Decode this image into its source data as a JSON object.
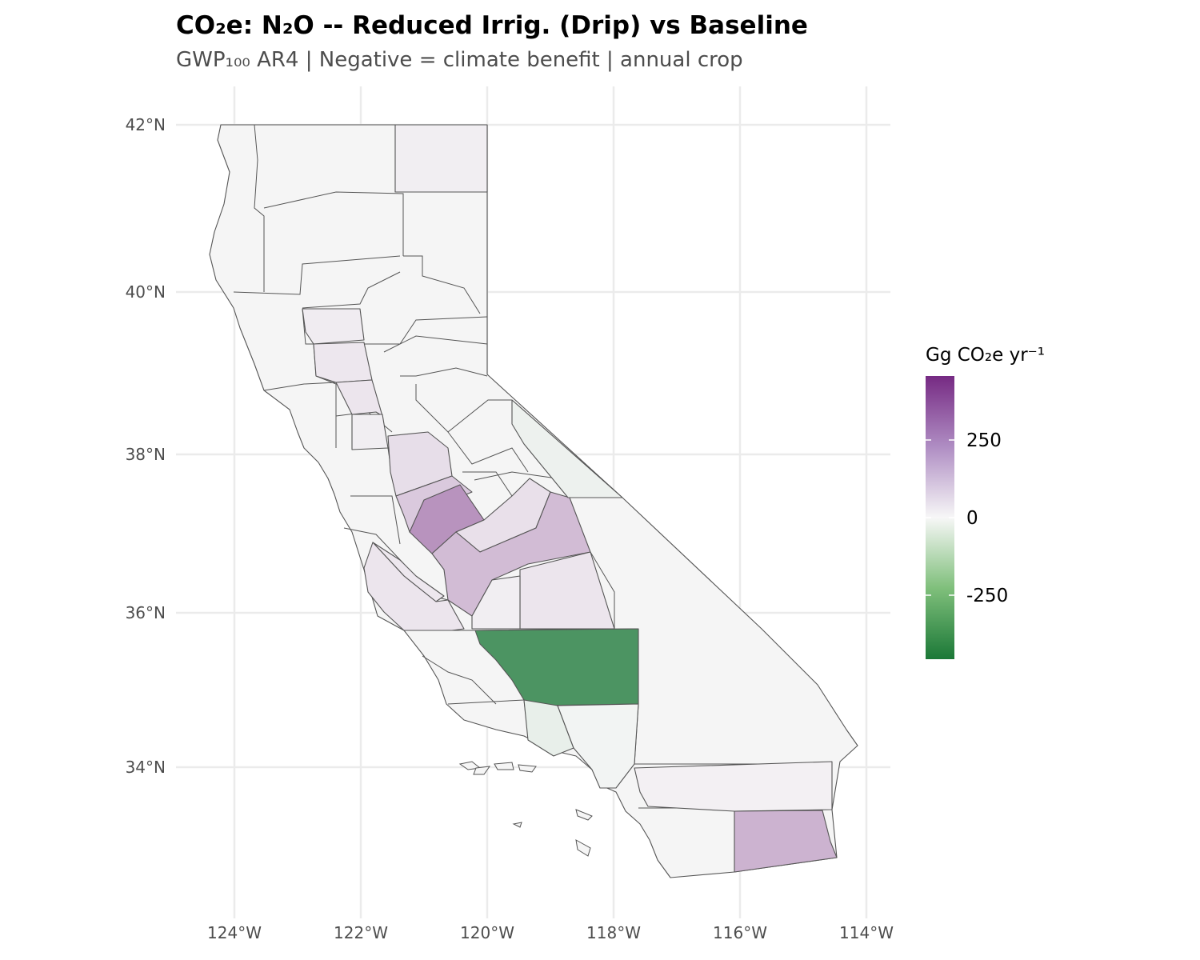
{
  "title": "CO₂e: N₂O -- Reduced Irrig. (Drip) vs Baseline",
  "subtitle": "GWP₁₀₀ AR4 | Negative = climate benefit | annual crop",
  "axes": {
    "lat_ticks": [
      "42°N",
      "40°N",
      "38°N",
      "36°N",
      "34°N"
    ],
    "lon_ticks": [
      "124°W",
      "122°W",
      "120°W",
      "118°W",
      "116°W",
      "114°W"
    ]
  },
  "legend": {
    "title": "Gg CO₂e yr⁻¹",
    "labels": [
      "250",
      "0",
      "-250"
    ],
    "colors": {
      "high": "#762a83",
      "mid": "#f7f7f7",
      "low": "#1b7837"
    }
  },
  "map_data": {
    "region": "California",
    "regions": [
      {
        "id": "modoc",
        "value": 20
      },
      {
        "id": "tehama",
        "value": 25
      },
      {
        "id": "glenn",
        "value": 35
      },
      {
        "id": "colusa",
        "value": 40
      },
      {
        "id": "yolo",
        "value": 20
      },
      {
        "id": "san-joaquin",
        "value": 55
      },
      {
        "id": "stanislaus",
        "value": 100
      },
      {
        "id": "merced",
        "value": 220
      },
      {
        "id": "madera",
        "value": 50
      },
      {
        "id": "fresno",
        "value": 130
      },
      {
        "id": "tulare",
        "value": 40
      },
      {
        "id": "kings",
        "value": 20
      },
      {
        "id": "san-benito",
        "value": 35
      },
      {
        "id": "monterey",
        "value": 40
      },
      {
        "id": "kern",
        "value": -350
      },
      {
        "id": "ventura",
        "value": -30
      },
      {
        "id": "los-angeles",
        "value": -10
      },
      {
        "id": "mono",
        "value": -20
      },
      {
        "id": "riverside",
        "value": 15
      },
      {
        "id": "imperial",
        "value": 150
      },
      {
        "id": "other",
        "value": 0
      }
    ]
  }
}
